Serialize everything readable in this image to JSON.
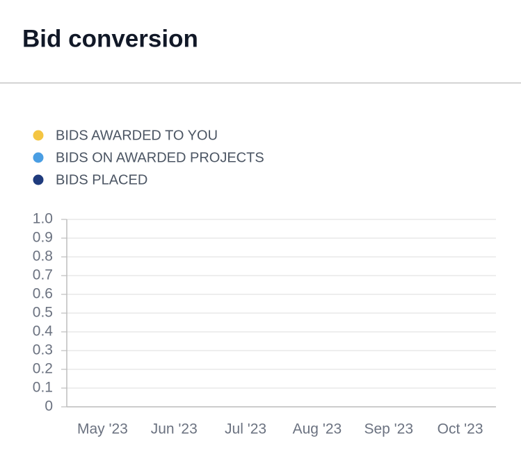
{
  "chart_data": {
    "type": "line",
    "title": "Bid conversion",
    "categories": [
      "May '23",
      "Jun '23",
      "Jul '23",
      "Aug '23",
      "Sep '23",
      "Oct '23"
    ],
    "series": [
      {
        "name": "BIDS AWARDED TO YOU",
        "color": "#f4c542",
        "values": [
          null,
          null,
          null,
          null,
          null,
          null
        ]
      },
      {
        "name": "BIDS ON AWARDED PROJECTS",
        "color": "#4a9ee3",
        "values": [
          null,
          null,
          null,
          null,
          null,
          null
        ]
      },
      {
        "name": "BIDS PLACED",
        "color": "#1f3b7d",
        "values": [
          null,
          null,
          null,
          null,
          null,
          null
        ]
      }
    ],
    "ylim": [
      0,
      1
    ],
    "yticks": [
      0,
      0.1,
      0.2,
      0.3,
      0.4,
      0.5,
      0.6,
      0.7,
      0.8,
      0.9,
      {
        "value": 1,
        "label": "1.0"
      }
    ],
    "grid": true,
    "legend": "top-left"
  }
}
